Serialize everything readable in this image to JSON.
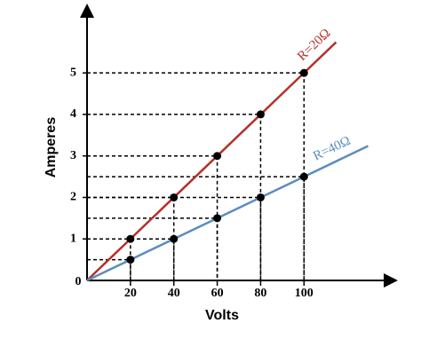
{
  "chart_data": {
    "type": "line",
    "x_label": "Volts",
    "y_label": "Amperes",
    "origin_label": "0",
    "x": [
      20,
      40,
      60,
      80,
      100
    ],
    "series": [
      {
        "name": "R=20Ω",
        "color": "#b5302a",
        "values": [
          1,
          2,
          3,
          4,
          5
        ]
      },
      {
        "name": "R=40Ω",
        "color": "#5b8dbd",
        "values": [
          0.5,
          1,
          1.5,
          2,
          2.5
        ]
      }
    ],
    "xlim": [
      0,
      140
    ],
    "ylim": [
      0,
      6.5
    ],
    "xticks": [
      20,
      40,
      60,
      80,
      100
    ],
    "yticks": [
      1,
      2,
      3,
      4,
      5
    ]
  }
}
